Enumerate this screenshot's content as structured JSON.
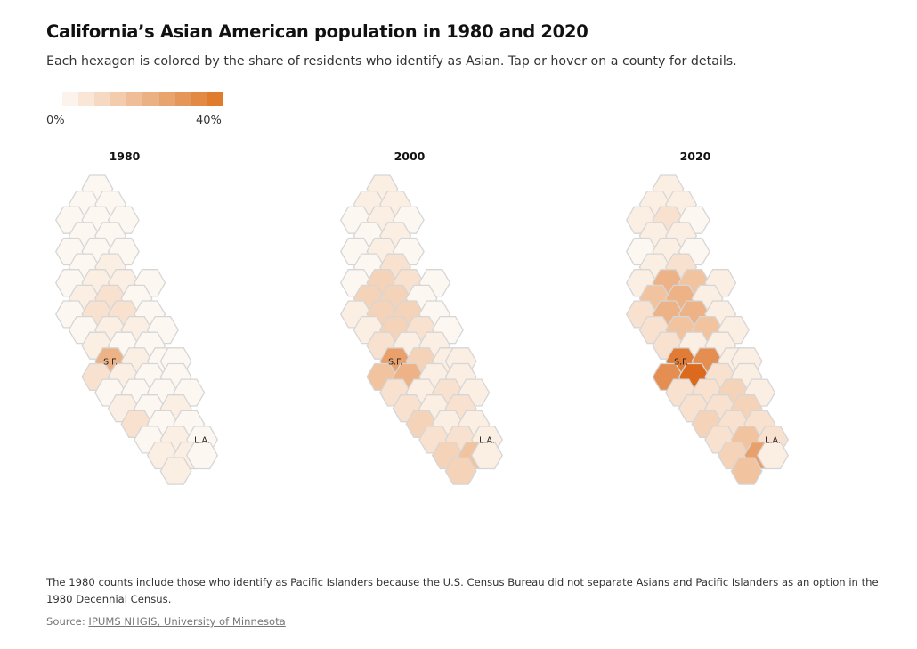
{
  "header": {
    "title": "California’s Asian American population in 1980 and 2020",
    "subtitle": "Each hexagon is colored by the share of residents who identify as Asian. Tap or hover on a county for details."
  },
  "legend": {
    "min_label": "0%",
    "max_label": "40%",
    "colors": [
      "#fcf3ec",
      "#f9e6d7",
      "#f6d9c3",
      "#f3ccae",
      "#efbe98",
      "#ecb183",
      "#e9a46e",
      "#e59659",
      "#e28943",
      "#df7c2e"
    ]
  },
  "map_data": {
    "type": "hex-tile-map",
    "hex_layout": [
      [
        2,
        0
      ],
      [
        1,
        1
      ],
      [
        3,
        1
      ],
      [
        0,
        2
      ],
      [
        2,
        2
      ],
      [
        4,
        2
      ],
      [
        1,
        3
      ],
      [
        3,
        3
      ],
      [
        0,
        4
      ],
      [
        2,
        4
      ],
      [
        4,
        4
      ],
      [
        1,
        5
      ],
      [
        3,
        5
      ],
      [
        0,
        6
      ],
      [
        2,
        6
      ],
      [
        4,
        6
      ],
      [
        6,
        6
      ],
      [
        1,
        7
      ],
      [
        3,
        7
      ],
      [
        5,
        7
      ],
      [
        0,
        8
      ],
      [
        2,
        8
      ],
      [
        4,
        8
      ],
      [
        6,
        8
      ],
      [
        1,
        9
      ],
      [
        3,
        9
      ],
      [
        5,
        9
      ],
      [
        7,
        9
      ],
      [
        2,
        10
      ],
      [
        4,
        10
      ],
      [
        6,
        10
      ],
      [
        3,
        11
      ],
      [
        5,
        11
      ],
      [
        7,
        11
      ],
      [
        8,
        11
      ],
      [
        2,
        12
      ],
      [
        4,
        12
      ],
      [
        6,
        12
      ],
      [
        8,
        12
      ],
      [
        3,
        13
      ],
      [
        5,
        13
      ],
      [
        7,
        13
      ],
      [
        9,
        13
      ],
      [
        4,
        14
      ],
      [
        6,
        14
      ],
      [
        8,
        14
      ],
      [
        5,
        15
      ],
      [
        7,
        15
      ],
      [
        9,
        15
      ],
      [
        6,
        16
      ],
      [
        8,
        16
      ],
      [
        10,
        16
      ],
      [
        7,
        17
      ],
      [
        9,
        17
      ],
      [
        10,
        17
      ],
      [
        8,
        18
      ]
    ],
    "panels": [
      {
        "year_label": "1980",
        "values": [
          0,
          0,
          0,
          0,
          0,
          0,
          0,
          0,
          0,
          0,
          0,
          0,
          1,
          0,
          1,
          1,
          0,
          1,
          2,
          0,
          0,
          2,
          2,
          0,
          0,
          1,
          1,
          0,
          1,
          0,
          0,
          5,
          1,
          0,
          0,
          2,
          1,
          0,
          0,
          0,
          0,
          0,
          0,
          1,
          0,
          1,
          2,
          0,
          0,
          0,
          1,
          0,
          1,
          1,
          0,
          1
        ],
        "labels": [
          {
            "index": 31,
            "text": "S.F."
          },
          {
            "index": 51,
            "text": "L.A."
          }
        ]
      },
      {
        "year_label": "2000",
        "values": [
          1,
          1,
          1,
          0,
          1,
          0,
          0,
          1,
          0,
          1,
          0,
          0,
          2,
          0,
          3,
          2,
          0,
          3,
          3,
          0,
          1,
          3,
          3,
          0,
          1,
          3,
          2,
          0,
          2,
          1,
          1,
          6,
          3,
          1,
          1,
          4,
          5,
          1,
          1,
          2,
          1,
          2,
          1,
          2,
          1,
          2,
          3,
          1,
          1,
          2,
          2,
          1,
          3,
          4,
          1,
          3
        ],
        "labels": [
          {
            "index": 31,
            "text": "S.F."
          },
          {
            "index": 51,
            "text": "L.A."
          }
        ]
      },
      {
        "year_label": "2020",
        "values": [
          1,
          1,
          1,
          1,
          2,
          0,
          1,
          1,
          0,
          1,
          0,
          1,
          2,
          1,
          5,
          4,
          1,
          4,
          5,
          1,
          2,
          5,
          5,
          1,
          2,
          4,
          4,
          1,
          2,
          1,
          1,
          8,
          7,
          1,
          1,
          7,
          9,
          2,
          1,
          2,
          2,
          3,
          1,
          2,
          2,
          3,
          3,
          2,
          2,
          2,
          4,
          2,
          3,
          6,
          1,
          4
        ],
        "labels": [
          {
            "index": 31,
            "text": "S.F."
          },
          {
            "index": 51,
            "text": "L.A."
          }
        ]
      }
    ]
  },
  "footer": {
    "note": "The 1980 counts include those who identify as Pacific Islanders because the U.S. Census Bureau did not separate Asians and Pacific Islanders as an option in the 1980 Decennial Census.",
    "source_prefix": "Source: ",
    "source_link": "IPUMS NHGIS, University of Minnesota"
  }
}
